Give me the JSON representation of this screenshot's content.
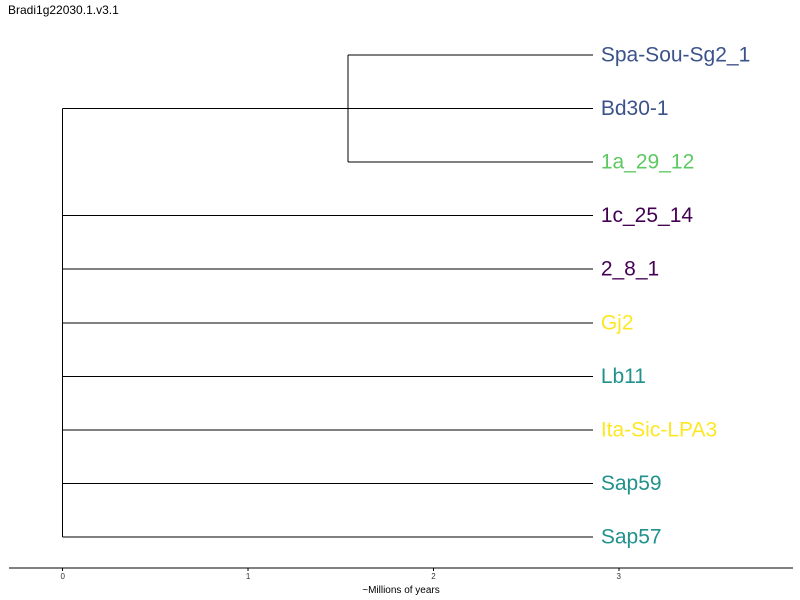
{
  "chart_data": {
    "type": "dendrogram",
    "title": "Bradi1g22030.1.v3.1",
    "xlabel": "~Millions of years",
    "ylabel": "",
    "xlim": [
      -0.29,
      3.94
    ],
    "x_ticks": [
      0,
      1,
      2,
      3
    ],
    "x_tick_labels": [
      "0",
      "1",
      "2",
      "3"
    ],
    "grid": false,
    "leaves": [
      {
        "label": "Spa-Sou-Sg2_1",
        "color": "#3b528b"
      },
      {
        "label": "Bd30-1",
        "color": "#3b528b"
      },
      {
        "label": "1a_29_12",
        "color": "#5ec962"
      },
      {
        "label": "1c_25_14",
        "color": "#440154"
      },
      {
        "label": "2_8_1",
        "color": "#440154"
      },
      {
        "label": "Gj2",
        "color": "#fde725"
      },
      {
        "label": "Lb11",
        "color": "#21918c"
      },
      {
        "label": "Ita-Sic-LPA3",
        "color": "#fde725"
      },
      {
        "label": "Sap59",
        "color": "#21918c"
      },
      {
        "label": "Sap57",
        "color": "#21918c"
      }
    ],
    "nodes": [
      {
        "id": "root",
        "height": 0.0,
        "children": [
          "clade_a",
          "1c_25_14",
          "2_8_1",
          "Gj2",
          "Lb11",
          "Ita-Sic-LPA3",
          "Sap59",
          "Sap57"
        ]
      },
      {
        "id": "clade_a",
        "height": 1.54,
        "children": [
          "Spa-Sou-Sg2_1",
          "Bd30-1",
          "1a_29_12"
        ]
      }
    ],
    "leaf_height": 2.86
  }
}
